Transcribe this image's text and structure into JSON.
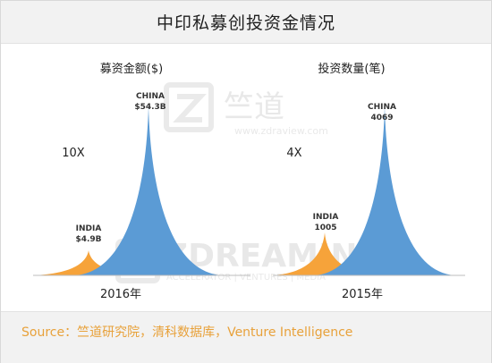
{
  "title": "中印私募创投资金情况",
  "footer": "Source：竺道研究院，清科数据库，Venture Intelligence",
  "watermark": {
    "top_brand": "竺道",
    "top_url": "www.zdraview.com",
    "bottom_brand": "ZDREAMIN",
    "bottom_tagline": "ACCELERATOR | VENTURES | MEDIA"
  },
  "colors": {
    "india": "#f6a33a",
    "china": "#5b9bd5",
    "footer_text": "#e8a13a"
  },
  "chart_data": [
    {
      "type": "area",
      "title": "募资金额($)",
      "xlabel": "2016年",
      "ratio_label": "10X",
      "series": [
        {
          "name": "INDIA",
          "label": "$4.9B",
          "value": 4.9,
          "unit": "$B"
        },
        {
          "name": "CHINA",
          "label": "$54.3B",
          "value": 54.3,
          "unit": "$B"
        }
      ]
    },
    {
      "type": "area",
      "title": "投资数量(笔)",
      "xlabel": "2015年",
      "ratio_label": "4X",
      "series": [
        {
          "name": "INDIA",
          "label": "1005",
          "value": 1005,
          "unit": "笔"
        },
        {
          "name": "CHINA",
          "label": "4069",
          "value": 4069,
          "unit": "笔"
        }
      ]
    }
  ]
}
